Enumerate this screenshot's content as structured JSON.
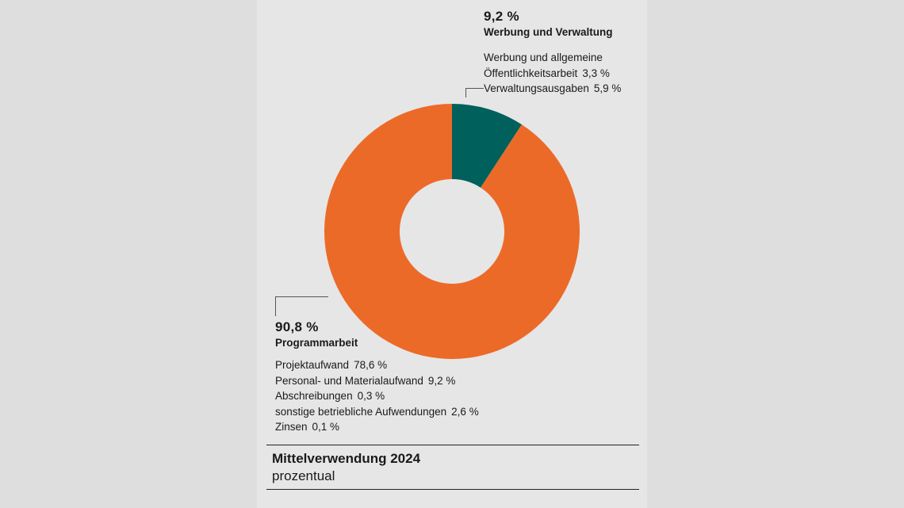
{
  "chart_data": {
    "type": "pie",
    "variant": "donut",
    "title": "Mittelverwendung 2024",
    "subtitle": "prozentual",
    "categories": [
      "Werbung und Verwaltung",
      "Programmarbeit"
    ],
    "values": [
      9.2,
      90.8
    ],
    "colors": [
      "#00605c",
      "#ec6a28"
    ],
    "groups": [
      {
        "pct_label": "9,2 %",
        "name": "Werbung und Verwaltung",
        "items": [
          {
            "label": "Werbung und allgemeine",
            "value": ""
          },
          {
            "label": "Öffentlichkeitsarbeit",
            "value": "3,3 %"
          },
          {
            "label": "Verwaltungsausgaben",
            "value": "5,9 %"
          }
        ]
      },
      {
        "pct_label": "90,8 %",
        "name": "Programmarbeit",
        "items": [
          {
            "label": "Projektaufwand",
            "value": "78,6 %"
          },
          {
            "label": "Personal- und Materialaufwand",
            "value": "9,2 %"
          },
          {
            "label": "Abschreibungen",
            "value": "0,3 %"
          },
          {
            "label": "sonstige betriebliche Aufwendungen",
            "value": "2,6 %"
          },
          {
            "label": "Zinsen",
            "value": "0,1 %"
          }
        ]
      }
    ]
  }
}
